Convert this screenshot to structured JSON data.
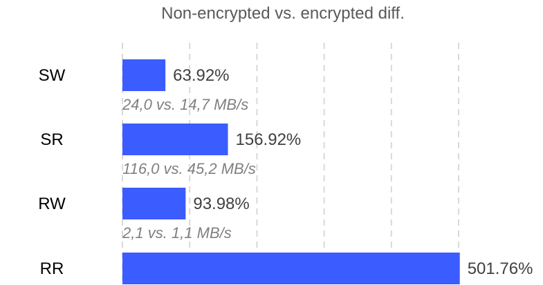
{
  "chart_data": {
    "type": "bar",
    "orientation": "horizontal",
    "title": "Non-encrypted vs. encrypted diff.",
    "xlabel": "",
    "ylabel": "",
    "categories": [
      "SW",
      "SR",
      "RW",
      "RR"
    ],
    "values": [
      63.92,
      156.92,
      93.98,
      501.76
    ],
    "value_labels": [
      "63.92%",
      "156.92%",
      "93.98%",
      "501.76%"
    ],
    "annotations": [
      "24,0 vs. 14,7 MB/s",
      "116,0 vs. 45,2 MB/s",
      "2,1 vs. 1,1 MB/s",
      ""
    ],
    "xlim": [
      0,
      500
    ],
    "x_ticks": [
      0,
      100,
      200,
      300,
      400,
      500
    ],
    "grid": true,
    "legend": "none",
    "colors": {
      "bar": "#3b5cff",
      "grid": "#d9d9d9"
    }
  }
}
